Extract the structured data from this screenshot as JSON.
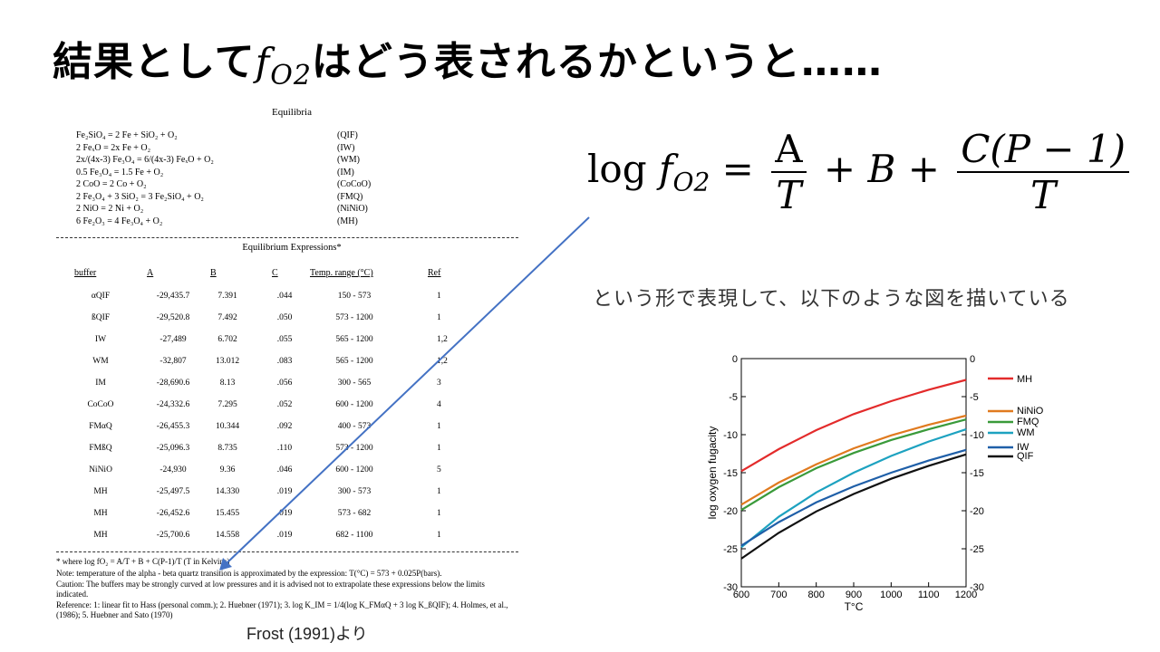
{
  "title": {
    "prefix": "結果として",
    "math_base": "f",
    "math_sub": "O2",
    "suffix": "はどう表されるかというと……"
  },
  "formula": {
    "log": "log",
    "f": "f",
    "sub": "O2",
    "eq": "=",
    "A": "A",
    "T1": "T",
    "plus1": "+",
    "B": "B",
    "plus2": "+",
    "num2": "C(P − 1)",
    "T2": "T"
  },
  "description": "という形で表現して、以下のような図を描いている",
  "citation": "Frost (1991)より",
  "paper": {
    "heading": "Equilibria",
    "equilibria": [
      {
        "eq": "Fe₂SiO₄ = 2 Fe + SiO₂ + O₂",
        "code": "(QIF)"
      },
      {
        "eq": "2 FeₓO = 2x Fe + O₂",
        "code": "(IW)"
      },
      {
        "eq": "2x/(4x-3) Fe₃O₄ = 6/(4x-3) FeₓO + O₂",
        "code": "(WM)"
      },
      {
        "eq": "0.5 Fe₃O₄ = 1.5 Fe + O₂",
        "code": "(IM)"
      },
      {
        "eq": "2 CoO = 2 Co + O₂",
        "code": "(CoCoO)"
      },
      {
        "eq": "2 Fe₃O₄ + 3 SiO₂ = 3 Fe₂SiO₄ + O₂",
        "code": "(FMQ)"
      },
      {
        "eq": "2 NiO = 2 Ni + O₂",
        "code": "(NiNiO)"
      },
      {
        "eq": "6 Fe₂O₃ = 4 Fe₃O₄ + O₂",
        "code": "(MH)"
      }
    ],
    "expressions_heading": "Equilibrium Expressions*",
    "columns": [
      "buffer",
      "A",
      "B",
      "C",
      "Temp. range (°C)",
      "Ref"
    ],
    "rows": [
      [
        "αQIF",
        "-29,435.7",
        "7.391",
        ".044",
        "150 - 573",
        "1"
      ],
      [
        "ßQIF",
        "-29,520.8",
        "7.492",
        ".050",
        "573 - 1200",
        "1"
      ],
      [
        "IW",
        "-27,489",
        "6.702",
        ".055",
        "565 - 1200",
        "1,2"
      ],
      [
        "WM",
        "-32,807",
        "13.012",
        ".083",
        "565 - 1200",
        "1,2"
      ],
      [
        "IM",
        "-28,690.6",
        "8.13",
        ".056",
        "300 - 565",
        "3"
      ],
      [
        "CoCoO",
        "-24,332.6",
        "7.295",
        ".052",
        "600 - 1200",
        "4"
      ],
      [
        "FMαQ",
        "-26,455.3",
        "10.344",
        ".092",
        "400 - 573",
        "1"
      ],
      [
        "FMßQ",
        "-25,096.3",
        "8.735",
        ".110",
        "573 - 1200",
        "1"
      ],
      [
        "NiNiO",
        "-24,930",
        "9.36",
        ".046",
        "600 - 1200",
        "5"
      ],
      [
        "MH",
        "-25,497.5",
        "14.330",
        ".019",
        "300 - 573",
        "1"
      ],
      [
        "MH",
        "-26,452.6",
        "15.455",
        ".019",
        "573 - 682",
        "1"
      ],
      [
        "MH",
        "-25,700.6",
        "14.558",
        ".019",
        "682 - 1100",
        "1"
      ]
    ],
    "notes": [
      "* where log fO₂ = A/T + B + C(P-1)/T (T in Kelvins)",
      "Note: temperature of the alpha - beta quartz transition is approximated by the expression: T(°C) = 573 + 0.025P(bars).",
      "Caution: The buffers may be strongly curved at low pressures and it is advised not to extrapolate these expressions below the limits indicated.",
      "Reference: 1: linear fit to Hass (personal comm.); 2. Huebner (1971); 3. log K_IM = 1/4(log K_FMαQ + 3 log K_ßQIF); 4. Holmes, et al., (1986); 5. Huebner and Sato (1970)"
    ]
  },
  "arrow_color": "#4472c4",
  "chart_data": {
    "type": "line",
    "xlabel": "T°C",
    "ylabel": "log oxygen fugacity",
    "xlim": [
      600,
      1200
    ],
    "ylim": [
      -30,
      0
    ],
    "xticks": [
      600,
      700,
      800,
      900,
      1000,
      1100,
      1200
    ],
    "yticks": [
      0,
      -5,
      -10,
      -15,
      -20,
      -25,
      -30
    ],
    "x": [
      600,
      700,
      800,
      900,
      1000,
      1100,
      1200
    ],
    "series": [
      {
        "name": "MH",
        "color": "#e32b2b",
        "values": [
          -14.8,
          -11.9,
          -9.4,
          -7.3,
          -5.6,
          -4.1,
          -2.8
        ]
      },
      {
        "name": "NiNiO",
        "color": "#e07a1f",
        "values": [
          -19.2,
          -16.3,
          -13.9,
          -11.8,
          -10.1,
          -8.7,
          -7.5
        ]
      },
      {
        "name": "FMQ",
        "color": "#3a9a3a",
        "values": [
          -19.9,
          -16.9,
          -14.4,
          -12.4,
          -10.7,
          -9.3,
          -8.0
        ]
      },
      {
        "name": "WM",
        "color": "#1da2c0",
        "values": [
          -24.8,
          -20.8,
          -17.6,
          -15.0,
          -12.8,
          -10.9,
          -9.3
        ]
      },
      {
        "name": "IW",
        "color": "#1f5fa8",
        "values": [
          -24.6,
          -21.5,
          -18.9,
          -16.8,
          -15.0,
          -13.4,
          -12.0
        ]
      },
      {
        "name": "QIF",
        "color": "#111111",
        "values": [
          -26.3,
          -22.9,
          -20.1,
          -17.8,
          -15.8,
          -14.1,
          -12.6
        ]
      }
    ]
  }
}
